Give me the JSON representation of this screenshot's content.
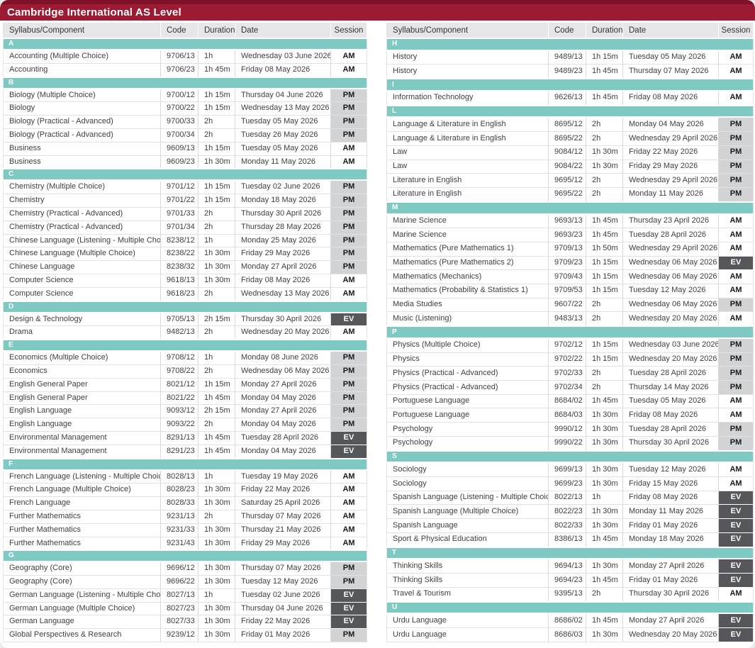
{
  "title": "Cambridge International AS Level",
  "columns": [
    "Syllabus/Component",
    "Code",
    "Duration",
    "Date",
    "Session"
  ],
  "colors": {
    "maroon": "#9c1b33",
    "maroon-dark": "#7f1228",
    "teal": "#7ecac3",
    "head-bg": "#e6e6e8",
    "pm-bg": "#d2d3d5",
    "ev-bg": "#56575b",
    "page-bg": "#eaeaea"
  },
  "session_values": [
    "AM",
    "PM",
    "EV"
  ],
  "tables": [
    {
      "sections": [
        {
          "letter": "A",
          "rows": [
            [
              "Accounting (Multiple Choice)",
              "9706/13",
              "1h",
              "Wednesday 03 June 2026",
              "AM"
            ],
            [
              "Accounting",
              "9706/23",
              "1h 45m",
              "Friday 08 May 2026",
              "AM"
            ]
          ]
        },
        {
          "letter": "B",
          "rows": [
            [
              "Biology (Multiple Choice)",
              "9700/12",
              "1h 15m",
              "Thursday 04 June 2026",
              "PM"
            ],
            [
              "Biology",
              "9700/22",
              "1h 15m",
              "Wednesday 13 May 2026",
              "PM"
            ],
            [
              "Biology (Practical - Advanced)",
              "9700/33",
              "2h",
              "Tuesday 05 May 2026",
              "PM"
            ],
            [
              "Biology (Practical - Advanced)",
              "9700/34",
              "2h",
              "Tuesday 26 May 2026",
              "PM"
            ],
            [
              "Business",
              "9609/13",
              "1h 15m",
              "Tuesday 05 May 2026",
              "AM"
            ],
            [
              "Business",
              "9609/23",
              "1h 30m",
              "Monday 11 May 2026",
              "AM"
            ]
          ]
        },
        {
          "letter": "C",
          "rows": [
            [
              "Chemistry (Multiple Choice)",
              "9701/12",
              "1h 15m",
              "Tuesday 02 June 2026",
              "PM"
            ],
            [
              "Chemistry",
              "9701/22",
              "1h 15m",
              "Monday 18 May 2026",
              "PM"
            ],
            [
              "Chemistry (Practical - Advanced)",
              "9701/33",
              "2h",
              "Thursday 30 April 2026",
              "PM"
            ],
            [
              "Chemistry (Practical - Advanced)",
              "9701/34",
              "2h",
              "Thursday 28 May 2026",
              "PM"
            ],
            [
              "Chinese Language (Listening - Multiple Choice)",
              "8238/12",
              "1h",
              "Monday 25 May 2026",
              "PM"
            ],
            [
              "Chinese Language (Multiple Choice)",
              "8238/22",
              "1h 30m",
              "Friday 29 May 2026",
              "PM"
            ],
            [
              "Chinese Language",
              "8238/32",
              "1h 30m",
              "Monday 27 April 2026",
              "PM"
            ],
            [
              "Computer Science",
              "9618/13",
              "1h 30m",
              "Friday 08 May 2026",
              "AM"
            ],
            [
              "Computer Science",
              "9618/23",
              "2h",
              "Wednesday 13 May 2026",
              "AM"
            ]
          ]
        },
        {
          "letter": "D",
          "rows": [
            [
              "Design & Technology",
              "9705/13",
              "2h 15m",
              "Thursday 30 April 2026",
              "EV"
            ],
            [
              "Drama",
              "9482/13",
              "2h",
              "Wednesday 20 May 2026",
              "AM"
            ]
          ]
        },
        {
          "letter": "E",
          "rows": [
            [
              "Economics (Multiple Choice)",
              "9708/12",
              "1h",
              "Monday 08 June 2026",
              "PM"
            ],
            [
              "Economics",
              "9708/22",
              "2h",
              "Wednesday 06 May 2026",
              "PM"
            ],
            [
              "English General Paper",
              "8021/12",
              "1h 15m",
              "Monday 27 April 2026",
              "PM"
            ],
            [
              "English General Paper",
              "8021/22",
              "1h 45m",
              "Monday 04 May 2026",
              "PM"
            ],
            [
              "English Language",
              "9093/12",
              "2h 15m",
              "Monday 27 April 2026",
              "PM"
            ],
            [
              "English Language",
              "9093/22",
              "2h",
              "Monday 04 May 2026",
              "PM"
            ],
            [
              "Environmental Management",
              "8291/13",
              "1h 45m",
              "Tuesday 28 April 2026",
              "EV"
            ],
            [
              "Environmental Management",
              "8291/23",
              "1h 45m",
              "Monday 04 May 2026",
              "EV"
            ]
          ]
        },
        {
          "letter": "F",
          "rows": [
            [
              "French Language (Listening - Multiple Choice)",
              "8028/13",
              "1h",
              "Tuesday 19 May 2026",
              "AM"
            ],
            [
              "French Language (Multiple Choice)",
              "8028/23",
              "1h 30m",
              "Friday 22 May 2026",
              "AM"
            ],
            [
              "French Language",
              "8028/33",
              "1h 30m",
              "Saturday 25 April 2026",
              "AM"
            ],
            [
              "Further Mathematics",
              "9231/13",
              "2h",
              "Thursday 07 May 2026",
              "AM"
            ],
            [
              "Further Mathematics",
              "9231/33",
              "1h 30m",
              "Thursday 21 May 2026",
              "AM"
            ],
            [
              "Further Mathematics",
              "9231/43",
              "1h 30m",
              "Friday 29 May 2026",
              "AM"
            ]
          ]
        },
        {
          "letter": "G",
          "rows": [
            [
              "Geography (Core)",
              "9696/12",
              "1h 30m",
              "Thursday 07 May 2026",
              "PM"
            ],
            [
              "Geography (Core)",
              "9696/22",
              "1h 30m",
              "Tuesday 12 May 2026",
              "PM"
            ],
            [
              "German Language (Listening - Multiple Choice)",
              "8027/13",
              "1h",
              "Tuesday 02 June 2026",
              "EV"
            ],
            [
              "German Language (Multiple Choice)",
              "8027/23",
              "1h 30m",
              "Thursday 04 June 2026",
              "EV"
            ],
            [
              "German Language",
              "8027/33",
              "1h 30m",
              "Friday 22 May 2026",
              "EV"
            ],
            [
              "Global Perspectives & Research",
              "9239/12",
              "1h 30m",
              "Friday 01 May 2026",
              "PM"
            ]
          ]
        }
      ]
    },
    {
      "sections": [
        {
          "letter": "H",
          "rows": [
            [
              "History",
              "9489/13",
              "1h 15m",
              "Tuesday 05 May 2026",
              "AM"
            ],
            [
              "History",
              "9489/23",
              "1h 45m",
              "Thursday 07 May 2026",
              "AM"
            ]
          ]
        },
        {
          "letter": "I",
          "rows": [
            [
              "Information Technology",
              "9626/13",
              "1h 45m",
              "Friday 08 May 2026",
              "AM"
            ]
          ]
        },
        {
          "letter": "L",
          "rows": [
            [
              "Language & Literature in English",
              "8695/12",
              "2h",
              "Monday 04 May 2026",
              "PM"
            ],
            [
              "Language & Literature in English",
              "8695/22",
              "2h",
              "Wednesday 29 April 2026",
              "PM"
            ],
            [
              "Law",
              "9084/12",
              "1h 30m",
              "Friday 22 May 2026",
              "PM"
            ],
            [
              "Law",
              "9084/22",
              "1h 30m",
              "Friday 29 May 2026",
              "PM"
            ],
            [
              "Literature in English",
              "9695/12",
              "2h",
              "Wednesday 29 April 2026",
              "PM"
            ],
            [
              "Literature in English",
              "9695/22",
              "2h",
              "Monday 11 May 2026",
              "PM"
            ]
          ]
        },
        {
          "letter": "M",
          "rows": [
            [
              "Marine Science",
              "9693/13",
              "1h 45m",
              "Thursday 23 April 2026",
              "AM"
            ],
            [
              "Marine Science",
              "9693/23",
              "1h 45m",
              "Tuesday 28 April 2026",
              "AM"
            ],
            [
              "Mathematics (Pure Mathematics 1)",
              "9709/13",
              "1h 50m",
              "Wednesday 29 April 2026",
              "AM"
            ],
            [
              "Mathematics (Pure Mathematics 2)",
              "9709/23",
              "1h 15m",
              "Wednesday 06 May 2026",
              "EV"
            ],
            [
              "Mathematics (Mechanics)",
              "9709/43",
              "1h 15m",
              "Wednesday 06 May 2026",
              "AM"
            ],
            [
              "Mathematics (Probability & Statistics 1)",
              "9709/53",
              "1h 15m",
              "Tuesday 12 May 2026",
              "AM"
            ],
            [
              "Media Studies",
              "9607/22",
              "2h",
              "Wednesday 06 May 2026",
              "PM"
            ],
            [
              "Music (Listening)",
              "9483/13",
              "2h",
              "Wednesday 20 May 2026",
              "AM"
            ]
          ]
        },
        {
          "letter": "P",
          "rows": [
            [
              "Physics (Multiple Choice)",
              "9702/12",
              "1h 15m",
              "Wednesday 03 June 2026",
              "PM"
            ],
            [
              "Physics",
              "9702/22",
              "1h 15m",
              "Wednesday 20 May 2026",
              "PM"
            ],
            [
              "Physics (Practical - Advanced)",
              "9702/33",
              "2h",
              "Tuesday 28 April 2026",
              "PM"
            ],
            [
              "Physics (Practical - Advanced)",
              "9702/34",
              "2h",
              "Thursday 14 May 2026",
              "PM"
            ],
            [
              "Portuguese Language",
              "8684/02",
              "1h 45m",
              "Tuesday 05 May 2026",
              "AM"
            ],
            [
              "Portuguese Language",
              "8684/03",
              "1h 30m",
              "Friday 08 May 2026",
              "AM"
            ],
            [
              "Psychology",
              "9990/12",
              "1h 30m",
              "Tuesday 28 April 2026",
              "PM"
            ],
            [
              "Psychology",
              "9990/22",
              "1h 30m",
              "Thursday 30 April 2026",
              "PM"
            ]
          ]
        },
        {
          "letter": "S",
          "rows": [
            [
              "Sociology",
              "9699/13",
              "1h 30m",
              "Tuesday 12 May 2026",
              "AM"
            ],
            [
              "Sociology",
              "9699/23",
              "1h 30m",
              "Friday 15 May 2026",
              "AM"
            ],
            [
              "Spanish Language (Listening - Multiple Choice)",
              "8022/13",
              "1h",
              "Friday 08 May 2026",
              "EV"
            ],
            [
              "Spanish Language (Multiple Choice)",
              "8022/23",
              "1h 30m",
              "Monday 11 May 2026",
              "EV"
            ],
            [
              "Spanish Language",
              "8022/33",
              "1h 30m",
              "Friday 01 May 2026",
              "EV"
            ],
            [
              "Sport & Physical Education",
              "8386/13",
              "1h 45m",
              "Monday 18 May 2026",
              "EV"
            ]
          ]
        },
        {
          "letter": "T",
          "rows": [
            [
              "Thinking Skills",
              "9694/13",
              "1h 30m",
              "Monday 27 April 2026",
              "EV"
            ],
            [
              "Thinking Skills",
              "9694/23",
              "1h 45m",
              "Friday 01 May 2026",
              "EV"
            ],
            [
              "Travel & Tourism",
              "9395/13",
              "2h",
              "Thursday 30 April 2026",
              "AM"
            ]
          ]
        },
        {
          "letter": "U",
          "rows": [
            [
              "Urdu Language",
              "8686/02",
              "1h 45m",
              "Monday 27 April 2026",
              "EV"
            ],
            [
              "Urdu Language",
              "8686/03",
              "1h 30m",
              "Wednesday 20 May 2026",
              "EV"
            ]
          ]
        }
      ]
    }
  ]
}
